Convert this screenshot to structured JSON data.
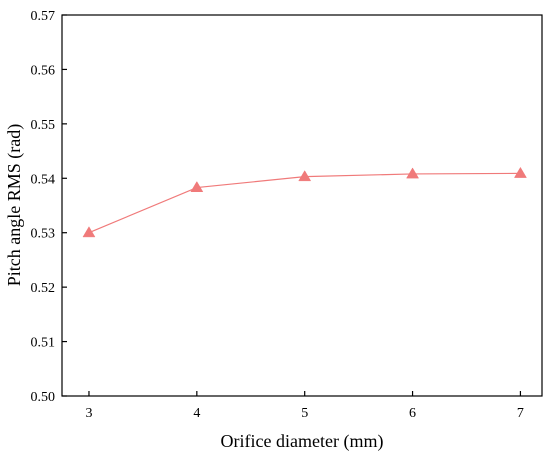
{
  "chart_data": {
    "type": "line",
    "xlabel": "Orifice diameter (mm)",
    "ylabel": "Pitch angle RMS (rad)",
    "x": [
      3,
      4,
      5,
      6,
      7
    ],
    "series": [
      {
        "values": [
          0.53,
          0.5383,
          0.5403,
          0.5408,
          0.5409
        ]
      }
    ],
    "xlim": [
      2.75,
      7.2
    ],
    "ylim": [
      0.5,
      0.57
    ],
    "xticks": [
      "3",
      "4",
      "5",
      "6",
      "7"
    ],
    "yticks": [
      "0.50",
      "0.51",
      "0.52",
      "0.53",
      "0.54",
      "0.55",
      "0.56",
      "0.57"
    ],
    "marker": "triangle",
    "color": "#f07a7a",
    "grid": false,
    "legend": false
  }
}
